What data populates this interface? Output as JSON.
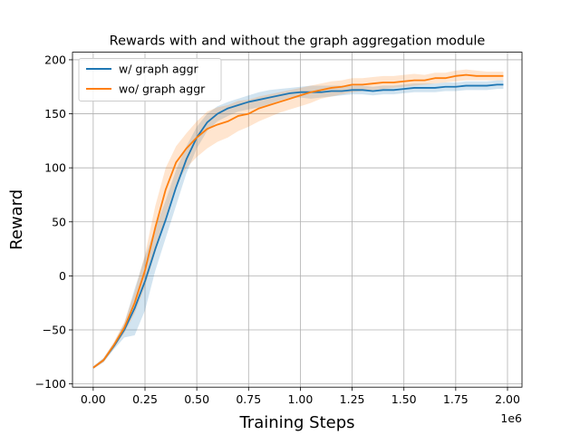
{
  "chart_data": {
    "type": "line",
    "title": "Rewards with and without the graph aggregation module",
    "xlabel": "Training Steps",
    "ylabel": "Reward",
    "x_offset_label": "1e6",
    "xlim": [
      -0.1,
      2.07
    ],
    "ylim": [
      -103,
      207
    ],
    "x_ticks": [
      0.0,
      0.25,
      0.5,
      0.75,
      1.0,
      1.25,
      1.5,
      1.75,
      2.0
    ],
    "x_tick_labels": [
      "0.00",
      "0.25",
      "0.50",
      "0.75",
      "1.00",
      "1.25",
      "1.50",
      "1.75",
      "2.00"
    ],
    "y_ticks": [
      -100,
      -50,
      0,
      50,
      100,
      150,
      200
    ],
    "y_tick_labels": [
      "−100",
      "−50",
      "0",
      "50",
      "100",
      "150",
      "200"
    ],
    "grid": true,
    "legend_position": "top-left",
    "x": [
      0.0,
      0.05,
      0.1,
      0.15,
      0.2,
      0.25,
      0.3,
      0.35,
      0.4,
      0.45,
      0.5,
      0.55,
      0.6,
      0.65,
      0.7,
      0.75,
      0.8,
      0.85,
      0.9,
      0.95,
      1.0,
      1.05,
      1.1,
      1.15,
      1.2,
      1.25,
      1.3,
      1.35,
      1.4,
      1.45,
      1.5,
      1.55,
      1.6,
      1.65,
      1.7,
      1.75,
      1.8,
      1.85,
      1.9,
      1.95,
      1.98
    ],
    "series": [
      {
        "name": "w/ graph aggr",
        "color": "#1f77b4",
        "fill_color": "#1f77b4",
        "values": [
          -85,
          -78,
          -65,
          -50,
          -30,
          -5,
          25,
          52,
          82,
          108,
          128,
          142,
          150,
          155,
          158,
          161,
          163,
          165,
          167,
          169,
          170,
          170,
          170,
          171,
          171,
          172,
          172,
          171,
          172,
          172,
          173,
          174,
          174,
          174,
          175,
          175,
          176,
          176,
          176,
          177,
          177
        ],
        "lower": [
          -86,
          -80,
          -68,
          -57,
          -55,
          -32,
          5,
          35,
          65,
          95,
          118,
          134,
          143,
          148,
          152,
          154,
          156,
          159,
          162,
          165,
          165,
          164,
          165,
          166,
          167,
          168,
          168,
          167,
          168,
          168,
          169,
          170,
          170,
          170,
          171,
          171,
          172,
          172,
          172,
          173,
          173
        ],
        "upper": [
          -84,
          -76,
          -62,
          -44,
          -12,
          18,
          45,
          70,
          98,
          120,
          138,
          150,
          157,
          161,
          164,
          167,
          170,
          172,
          173,
          174,
          175,
          176,
          176,
          176,
          176,
          176,
          176,
          175,
          176,
          176,
          177,
          178,
          178,
          178,
          179,
          179,
          180,
          180,
          180,
          181,
          181
        ]
      },
      {
        "name": "wo/ graph aggr",
        "color": "#ff7f0e",
        "fill_color": "#ff7f0e",
        "values": [
          -85,
          -78,
          -64,
          -48,
          -25,
          5,
          45,
          80,
          105,
          118,
          128,
          136,
          140,
          143,
          148,
          150,
          155,
          158,
          161,
          164,
          167,
          170,
          172,
          174,
          175,
          177,
          177,
          178,
          179,
          179,
          180,
          181,
          181,
          183,
          183,
          185,
          186,
          185,
          185,
          185,
          185
        ],
        "lower": [
          -86,
          -80,
          -67,
          -53,
          -35,
          -10,
          22,
          55,
          85,
          100,
          110,
          118,
          124,
          128,
          134,
          138,
          143,
          147,
          151,
          154,
          157,
          160,
          164,
          166,
          168,
          170,
          171,
          172,
          173,
          174,
          175,
          176,
          177,
          178,
          179,
          180,
          181,
          181,
          181,
          181,
          181
        ],
        "upper": [
          -84,
          -76,
          -61,
          -43,
          -15,
          20,
          65,
          100,
          120,
          132,
          143,
          152,
          156,
          158,
          162,
          163,
          166,
          168,
          170,
          172,
          174,
          176,
          178,
          180,
          181,
          183,
          183,
          184,
          185,
          185,
          186,
          187,
          186,
          188,
          188,
          190,
          191,
          190,
          189,
          189,
          189
        ]
      }
    ]
  }
}
